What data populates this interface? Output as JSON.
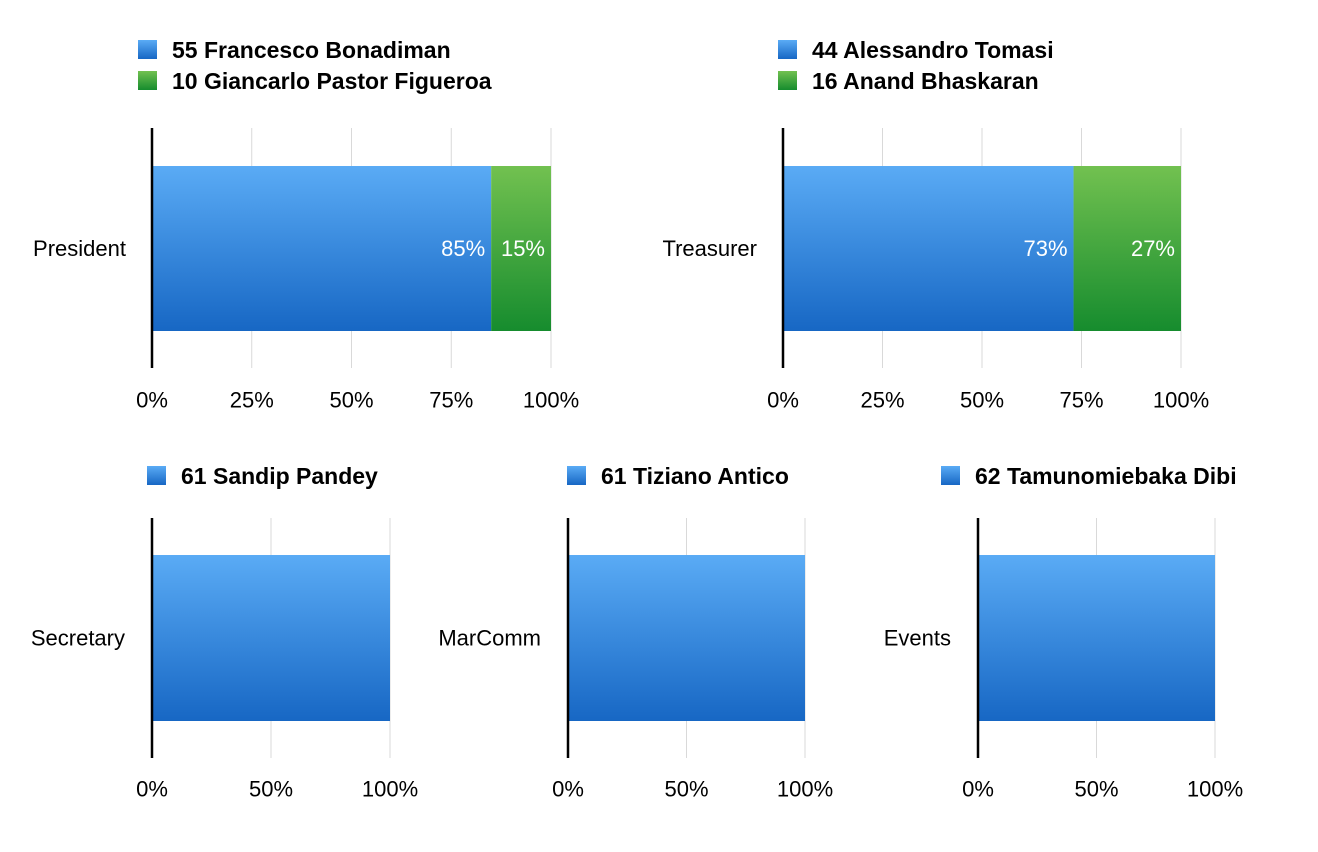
{
  "colors": {
    "blue_top": "#5aabf5",
    "blue_bottom": "#1767c4",
    "green_top": "#72c150",
    "green_bottom": "#168c2e",
    "grid": "#d9d9d9",
    "axis": "#000000"
  },
  "chart_data": [
    {
      "type": "bar",
      "orientation": "horizontal",
      "stacked": true,
      "categories": [
        "President"
      ],
      "series": [
        {
          "name": "55 Francesco Bonadiman",
          "color": "blue",
          "values": [
            85
          ],
          "label": "85%"
        },
        {
          "name": "10 Giancarlo Pastor Figueroa",
          "color": "green",
          "values": [
            15
          ],
          "label": "15%"
        }
      ],
      "xlim": [
        0,
        100
      ],
      "ticks": [
        "0%",
        "25%",
        "50%",
        "75%",
        "100%"
      ],
      "grid": true,
      "legend": "top-left"
    },
    {
      "type": "bar",
      "orientation": "horizontal",
      "stacked": true,
      "categories": [
        "Treasurer"
      ],
      "series": [
        {
          "name": "44 Alessandro Tomasi",
          "color": "blue",
          "values": [
            73
          ],
          "label": "73%"
        },
        {
          "name": "16 Anand Bhaskaran",
          "color": "green",
          "values": [
            27
          ],
          "label": "27%"
        }
      ],
      "xlim": [
        0,
        100
      ],
      "ticks": [
        "0%",
        "25%",
        "50%",
        "75%",
        "100%"
      ],
      "grid": true,
      "legend": "top-left"
    },
    {
      "type": "bar",
      "orientation": "horizontal",
      "stacked": true,
      "categories": [
        "Secretary"
      ],
      "series": [
        {
          "name": "61 Sandip Pandey",
          "color": "blue",
          "values": [
            100
          ]
        }
      ],
      "xlim": [
        0,
        100
      ],
      "ticks": [
        "0%",
        "50%",
        "100%"
      ],
      "grid": true,
      "legend": "top-left"
    },
    {
      "type": "bar",
      "orientation": "horizontal",
      "stacked": true,
      "categories": [
        "MarComm"
      ],
      "series": [
        {
          "name": "61 Tiziano Antico",
          "color": "blue",
          "values": [
            100
          ]
        }
      ],
      "xlim": [
        0,
        100
      ],
      "ticks": [
        "0%",
        "50%",
        "100%"
      ],
      "grid": true,
      "legend": "top-left"
    },
    {
      "type": "bar",
      "orientation": "horizontal",
      "stacked": true,
      "categories": [
        "Events"
      ],
      "series": [
        {
          "name": "62 Tamunomiebaka Dibi",
          "color": "blue",
          "values": [
            100
          ]
        }
      ],
      "xlim": [
        0,
        100
      ],
      "ticks": [
        "0%",
        "50%",
        "100%"
      ],
      "grid": true,
      "legend": "top-left"
    }
  ]
}
